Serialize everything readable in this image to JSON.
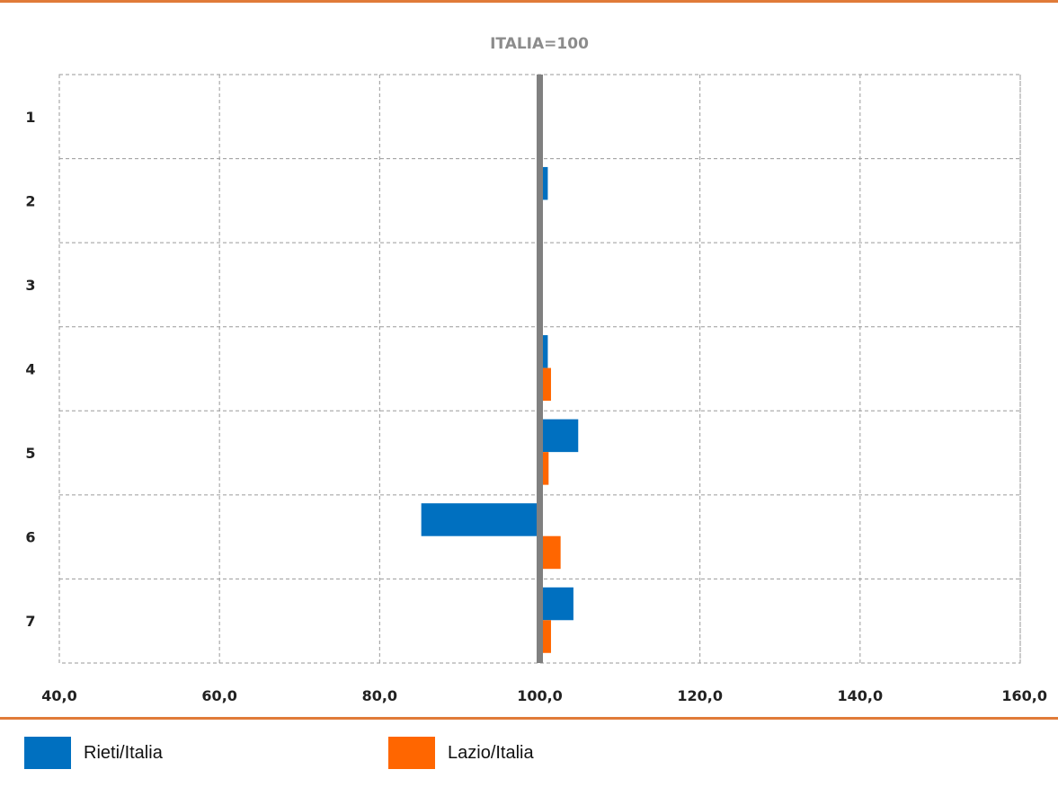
{
  "chart_data": {
    "type": "bar",
    "orientation": "horizontal",
    "title": "ITALIA=100",
    "categories": [
      "1",
      "2",
      "3",
      "4",
      "5",
      "6",
      "7"
    ],
    "baseline": 100,
    "xlim": [
      40,
      160
    ],
    "xticks": [
      "40,0",
      "60,0",
      "80,0",
      "100,0",
      "120,0",
      "140,0",
      "160,0"
    ],
    "grid": true,
    "series": [
      {
        "name": "Rieti/Italia",
        "color": "#0070c0",
        "values": [
          100,
          101.0,
          100,
          101.0,
          104.8,
          85.2,
          104.2
        ]
      },
      {
        "name": "Lazio/Italia",
        "color": "#ff6600",
        "values": [
          100,
          100,
          100,
          101.4,
          101.1,
          102.6,
          101.4
        ]
      }
    ],
    "reference_line": {
      "value": 100,
      "color": "#808080"
    },
    "legend_position": "bottom"
  }
}
